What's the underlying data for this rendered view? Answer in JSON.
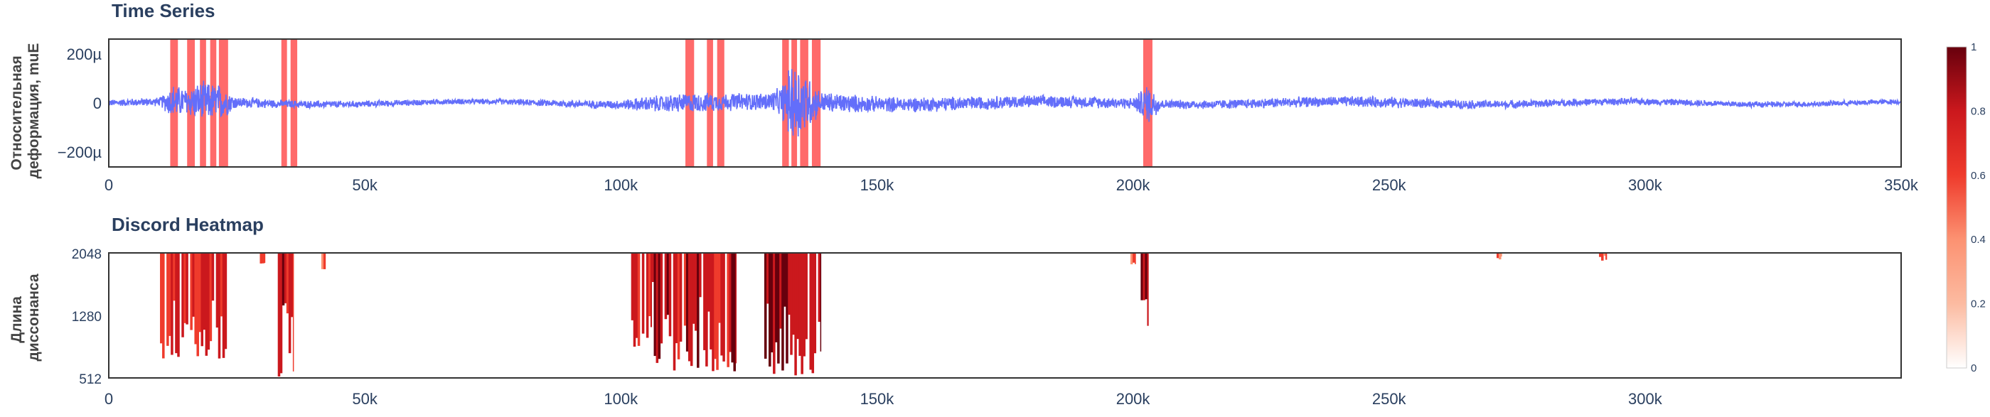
{
  "chart_data": [
    {
      "type": "line",
      "title": "Time Series",
      "ylabel_lines": [
        "Относительная",
        "деформация, muE"
      ],
      "xlim": [
        0,
        350000
      ],
      "ylim": [
        -260,
        260
      ],
      "x_ticks": [
        {
          "value": 0,
          "label": "0"
        },
        {
          "value": 50000,
          "label": "50k"
        },
        {
          "value": 100000,
          "label": "100k"
        },
        {
          "value": 150000,
          "label": "150k"
        },
        {
          "value": 200000,
          "label": "200k"
        },
        {
          "value": 250000,
          "label": "250k"
        },
        {
          "value": 300000,
          "label": "300k"
        },
        {
          "value": 350000,
          "label": "350k"
        }
      ],
      "y_ticks": [
        {
          "value": 200,
          "label": "200µ"
        },
        {
          "value": 0,
          "label": "0"
        },
        {
          "value": -200,
          "label": "−200µ"
        }
      ],
      "line_color": "#636efa",
      "highlight_color": "#ff5a5a",
      "highlight_regions": [
        [
          12000,
          13500
        ],
        [
          15300,
          16800
        ],
        [
          17800,
          19000
        ],
        [
          19800,
          21000
        ],
        [
          21500,
          23300
        ],
        [
          33700,
          34800
        ],
        [
          35500,
          36800
        ],
        [
          112600,
          114300
        ],
        [
          116800,
          118000
        ],
        [
          118800,
          120200
        ],
        [
          131500,
          132800
        ],
        [
          133300,
          134400
        ],
        [
          135000,
          136600
        ],
        [
          137300,
          139000
        ],
        [
          202000,
          203800
        ]
      ],
      "amplitude_envelope": [
        {
          "x": 0,
          "amp": 15
        },
        {
          "x": 10000,
          "amp": 20
        },
        {
          "x": 12500,
          "amp": 80
        },
        {
          "x": 15000,
          "amp": 60
        },
        {
          "x": 18000,
          "amp": 90
        },
        {
          "x": 22000,
          "amp": 80
        },
        {
          "x": 25000,
          "amp": 25
        },
        {
          "x": 34000,
          "amp": 18
        },
        {
          "x": 50000,
          "amp": 15
        },
        {
          "x": 75000,
          "amp": 12
        },
        {
          "x": 100000,
          "amp": 20
        },
        {
          "x": 105000,
          "amp": 35
        },
        {
          "x": 113000,
          "amp": 45
        },
        {
          "x": 120000,
          "amp": 40
        },
        {
          "x": 128000,
          "amp": 40
        },
        {
          "x": 131000,
          "amp": 60
        },
        {
          "x": 134000,
          "amp": 200
        },
        {
          "x": 136000,
          "amp": 140
        },
        {
          "x": 139000,
          "amp": 50
        },
        {
          "x": 150000,
          "amp": 35
        },
        {
          "x": 175000,
          "amp": 30
        },
        {
          "x": 200000,
          "amp": 25
        },
        {
          "x": 203000,
          "amp": 90
        },
        {
          "x": 206000,
          "amp": 20
        },
        {
          "x": 250000,
          "amp": 25
        },
        {
          "x": 262000,
          "amp": 20
        },
        {
          "x": 300000,
          "amp": 15
        },
        {
          "x": 350000,
          "amp": 12
        }
      ]
    },
    {
      "type": "heatmap",
      "title": "Discord Heatmap",
      "ylabel_lines": [
        "Длина",
        "диссонанса"
      ],
      "xlim": [
        0,
        350000
      ],
      "ylim": [
        512,
        2048
      ],
      "x_ticks": [
        {
          "value": 0,
          "label": "0"
        },
        {
          "value": 50000,
          "label": "50k"
        },
        {
          "value": 100000,
          "label": "100k"
        },
        {
          "value": 150000,
          "label": "150k"
        },
        {
          "value": 200000,
          "label": "200k"
        },
        {
          "value": 250000,
          "label": "250k"
        },
        {
          "value": 300000,
          "label": "300k"
        }
      ],
      "y_ticks": [
        {
          "value": 2048,
          "label": "2048"
        },
        {
          "value": 1280,
          "label": "1280"
        },
        {
          "value": 512,
          "label": "512"
        }
      ],
      "colorscale": [
        "#ffffff",
        "#fcbba1",
        "#fc9272",
        "#ef3b2c",
        "#cb181d",
        "#67000d"
      ],
      "colorbar": {
        "ticks": [
          {
            "value": 0,
            "label": "0"
          },
          {
            "value": 0.2,
            "label": "0.2"
          },
          {
            "value": 0.4,
            "label": "0.4"
          },
          {
            "value": 0.6,
            "label": "0.6"
          },
          {
            "value": 0.8,
            "label": "0.8"
          },
          {
            "value": 1,
            "label": "1"
          }
        ]
      },
      "discord_bands": [
        {
          "x_start": 10000,
          "x_end": 23000,
          "min_length": 750,
          "intensity": 0.75
        },
        {
          "x_start": 29500,
          "x_end": 30500,
          "min_length": 1900,
          "intensity": 0.6
        },
        {
          "x_start": 33000,
          "x_end": 36000,
          "min_length": 512,
          "intensity": 0.8
        },
        {
          "x_start": 41500,
          "x_end": 42300,
          "min_length": 1800,
          "intensity": 0.55
        },
        {
          "x_start": 102000,
          "x_end": 106000,
          "min_length": 850,
          "intensity": 0.7
        },
        {
          "x_start": 106000,
          "x_end": 122500,
          "min_length": 580,
          "intensity": 0.8
        },
        {
          "x_start": 128000,
          "x_end": 139000,
          "min_length": 512,
          "intensity": 0.85
        },
        {
          "x_start": 199500,
          "x_end": 200500,
          "min_length": 1900,
          "intensity": 0.5
        },
        {
          "x_start": 201500,
          "x_end": 203000,
          "min_length": 1100,
          "intensity": 0.8
        },
        {
          "x_start": 271000,
          "x_end": 272000,
          "min_length": 1950,
          "intensity": 0.5
        },
        {
          "x_start": 291000,
          "x_end": 292500,
          "min_length": 1950,
          "intensity": 0.5
        }
      ]
    }
  ]
}
